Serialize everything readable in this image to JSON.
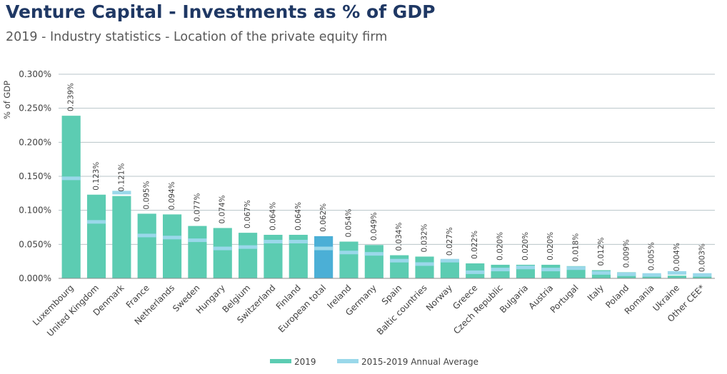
{
  "header": {
    "title": "Venture Capital - Investments as % of GDP",
    "subtitle": "2019 - Industry statistics - Location of the private equity firm"
  },
  "colors": {
    "bar": "#5cccb2",
    "highlight_bar": "#4bafd6",
    "average_marker": "#9ad8ea",
    "title": "#1f3864",
    "axis_text": "#404040"
  },
  "chart_data": {
    "type": "bar",
    "ylabel": "% of GDP",
    "ylim": [
      0,
      0.3
    ],
    "yticks": [
      0,
      0.05,
      0.1,
      0.15,
      0.2,
      0.25,
      0.3
    ],
    "ytick_labels": [
      "0.000%",
      "0.050%",
      "0.100%",
      "0.150%",
      "0.200%",
      "0.250%",
      "0.300%"
    ],
    "grid": true,
    "legend_position": "bottom",
    "highlight_category": "European total",
    "categories": [
      "Luxembourg",
      "United Kingdom",
      "Denmark",
      "France",
      "Netherlands",
      "Sweden",
      "Hungary",
      "Belgium",
      "Switzerland",
      "Finland",
      "European total",
      "Ireland",
      "Germany",
      "Spain",
      "Baltic countries",
      "Norway",
      "Greece",
      "Czech Republic",
      "Bulgaria",
      "Austria",
      "Portugal",
      "Italy",
      "Poland",
      "Romania",
      "Ukraine",
      "Other CEE*"
    ],
    "series": [
      {
        "name": "2019",
        "type": "bar",
        "values": [
          0.239,
          0.123,
          0.121,
          0.095,
          0.094,
          0.077,
          0.074,
          0.067,
          0.064,
          0.064,
          0.062,
          0.054,
          0.049,
          0.034,
          0.032,
          0.027,
          0.022,
          0.02,
          0.02,
          0.02,
          0.018,
          0.012,
          0.009,
          0.005,
          0.004,
          0.003
        ],
        "labels": [
          "0.239%",
          "0.123%",
          "0.121%",
          "0.095%",
          "0.094%",
          "0.077%",
          "0.074%",
          "0.067%",
          "0.064%",
          "0.064%",
          "0.062%",
          "0.054%",
          "0.049%",
          "0.034%",
          "0.032%",
          "0.027%",
          "0.022%",
          "0.020%",
          "0.020%",
          "0.020%",
          "0.018%",
          "0.012%",
          "0.009%",
          "0.005%",
          "0.004%",
          "0.003%"
        ]
      },
      {
        "name": "2015-2019 Annual Average",
        "type": "marker",
        "values": [
          0.147,
          0.083,
          0.126,
          0.063,
          0.06,
          0.056,
          0.044,
          0.046,
          0.054,
          0.054,
          0.044,
          0.038,
          0.036,
          0.026,
          0.021,
          0.026,
          0.009,
          0.013,
          0.016,
          0.013,
          0.015,
          0.008,
          0.006,
          0.005,
          0.008,
          0.005
        ]
      }
    ]
  }
}
